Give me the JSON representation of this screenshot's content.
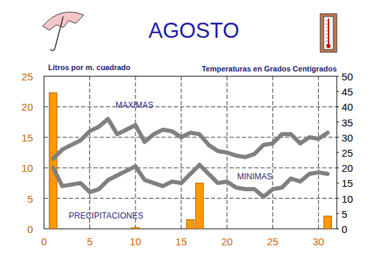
{
  "chart_data": {
    "type": "bar_line",
    "title": "AGOSTO",
    "y_label": "Litros por m. cuadrado",
    "y2_label": "Temperaturas en Grados Centígrados",
    "x": [
      1,
      2,
      3,
      4,
      5,
      6,
      7,
      8,
      9,
      10,
      11,
      12,
      13,
      14,
      15,
      16,
      17,
      18,
      19,
      20,
      21,
      22,
      23,
      24,
      25,
      26,
      27,
      28,
      29,
      30,
      31
    ],
    "xlim": [
      0,
      32
    ],
    "xticks": [
      0,
      5,
      10,
      15,
      20,
      25,
      30
    ],
    "ylim": [
      0,
      25
    ],
    "yticks": [
      0,
      5,
      10,
      15,
      20,
      25
    ],
    "y2lim": [
      0,
      50
    ],
    "y2ticks": [
      0,
      5,
      10,
      15,
      20,
      25,
      30,
      35,
      40,
      45,
      50
    ],
    "grid": true,
    "series": [
      {
        "name": "PRECIPITACIONES",
        "type": "bar",
        "color": "#ff9900",
        "values": [
          22.3,
          0,
          0,
          0,
          0,
          0,
          0,
          0,
          0,
          0.2,
          0,
          0,
          0,
          0,
          0,
          1.5,
          7.5,
          0,
          0,
          0,
          0,
          0,
          0,
          0,
          0,
          0,
          0,
          0,
          0,
          0,
          2.1
        ]
      },
      {
        "name": "MAXIMAS",
        "type": "line",
        "axis": "y2",
        "color": "#808080",
        "values": [
          23,
          26,
          27.5,
          29,
          32,
          33.5,
          36,
          31,
          32.5,
          34,
          28.5,
          31,
          32.5,
          32,
          30,
          31.5,
          31,
          27.5,
          25.5,
          25,
          24,
          23.5,
          24.5,
          27.5,
          28,
          31,
          31,
          28,
          30,
          29.5,
          31.5
        ]
      },
      {
        "name": "MINIMAS",
        "type": "line",
        "axis": "y2",
        "color": "#808080",
        "values": [
          20,
          14,
          14.5,
          15,
          12,
          13,
          16,
          17.5,
          19,
          20.5,
          16,
          15,
          14,
          15.5,
          15,
          18,
          21,
          18,
          15,
          15.5,
          13.5,
          13,
          13,
          10.5,
          13,
          13.5,
          16.5,
          15.5,
          18,
          18.5,
          18
        ]
      }
    ]
  }
}
